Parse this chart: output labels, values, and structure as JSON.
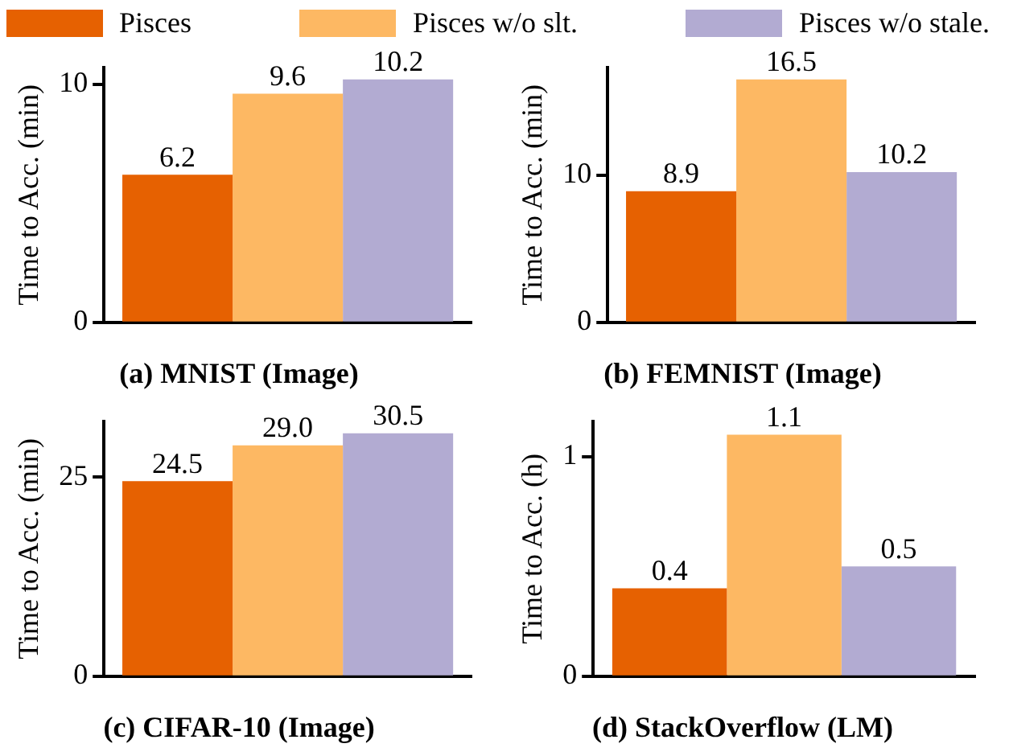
{
  "chart_data": [
    {
      "type": "bar",
      "title": "(a) MNIST (Image)",
      "ylabel": "Time to Acc. (min)",
      "categories": [
        null
      ],
      "series": [
        {
          "name": "Pisces",
          "color": "#e66101",
          "values": [
            6.2
          ]
        },
        {
          "name": "Pisces w/o slt.",
          "color": "#fdb863",
          "values": [
            9.6
          ]
        },
        {
          "name": "Pisces w/o stale.",
          "color": "#b2abd2",
          "values": [
            10.2
          ]
        }
      ],
      "ylim": [
        0,
        10.7
      ],
      "yticks": [
        0,
        10
      ],
      "data_labels": true,
      "grid": false,
      "legend": "top",
      "tick_labels": "y"
    },
    {
      "type": "bar",
      "title": "(b) FEMNIST (Image)",
      "ylabel": "Time to Acc. (min)",
      "categories": [
        null
      ],
      "series": [
        {
          "name": "Pisces",
          "color": "#e66101",
          "values": [
            8.9
          ]
        },
        {
          "name": "Pisces w/o slt.",
          "color": "#fdb863",
          "values": [
            16.5
          ]
        },
        {
          "name": "Pisces w/o stale.",
          "color": "#b2abd2",
          "values": [
            10.2
          ]
        }
      ],
      "ylim": [
        0,
        17.3
      ],
      "yticks": [
        0,
        10
      ],
      "data_labels": true,
      "grid": false,
      "legend": "top",
      "tick_labels": "y"
    },
    {
      "type": "bar",
      "title": "(c) CIFAR-10 (Image)",
      "ylabel": "Time to Acc. (min)",
      "categories": [
        null
      ],
      "series": [
        {
          "name": "Pisces",
          "color": "#e66101",
          "values": [
            24.5
          ],
          "value_labels": [
            "24.5"
          ]
        },
        {
          "name": "Pisces w/o slt.",
          "color": "#fdb863",
          "values": [
            29.0
          ],
          "value_labels": [
            "29.0"
          ]
        },
        {
          "name": "Pisces w/o stale.",
          "color": "#b2abd2",
          "values": [
            30.5
          ],
          "value_labels": [
            "30.5"
          ]
        }
      ],
      "ylim": [
        0,
        32
      ],
      "yticks": [
        0,
        25
      ],
      "grid": false,
      "legend": "top",
      "tick_labels": "y"
    },
    {
      "type": "bar",
      "title": "(d) StackOverflow (LM)",
      "ylabel": "Time to Acc. (h)",
      "categories": [
        null
      ],
      "series": [
        {
          "name": "Pisces",
          "color": "#e66101",
          "values": [
            0.4
          ]
        },
        {
          "name": "Pisces w/o slt.",
          "color": "#fdb863",
          "values": [
            1.1
          ]
        },
        {
          "name": "Pisces w/o stale.",
          "color": "#b2abd2",
          "values": [
            0.5
          ]
        }
      ],
      "ylim": [
        0,
        1.16
      ],
      "yticks": [
        0,
        1
      ],
      "data_labels": true,
      "grid": false,
      "legend": "top",
      "tick_labels": "y"
    }
  ]
}
